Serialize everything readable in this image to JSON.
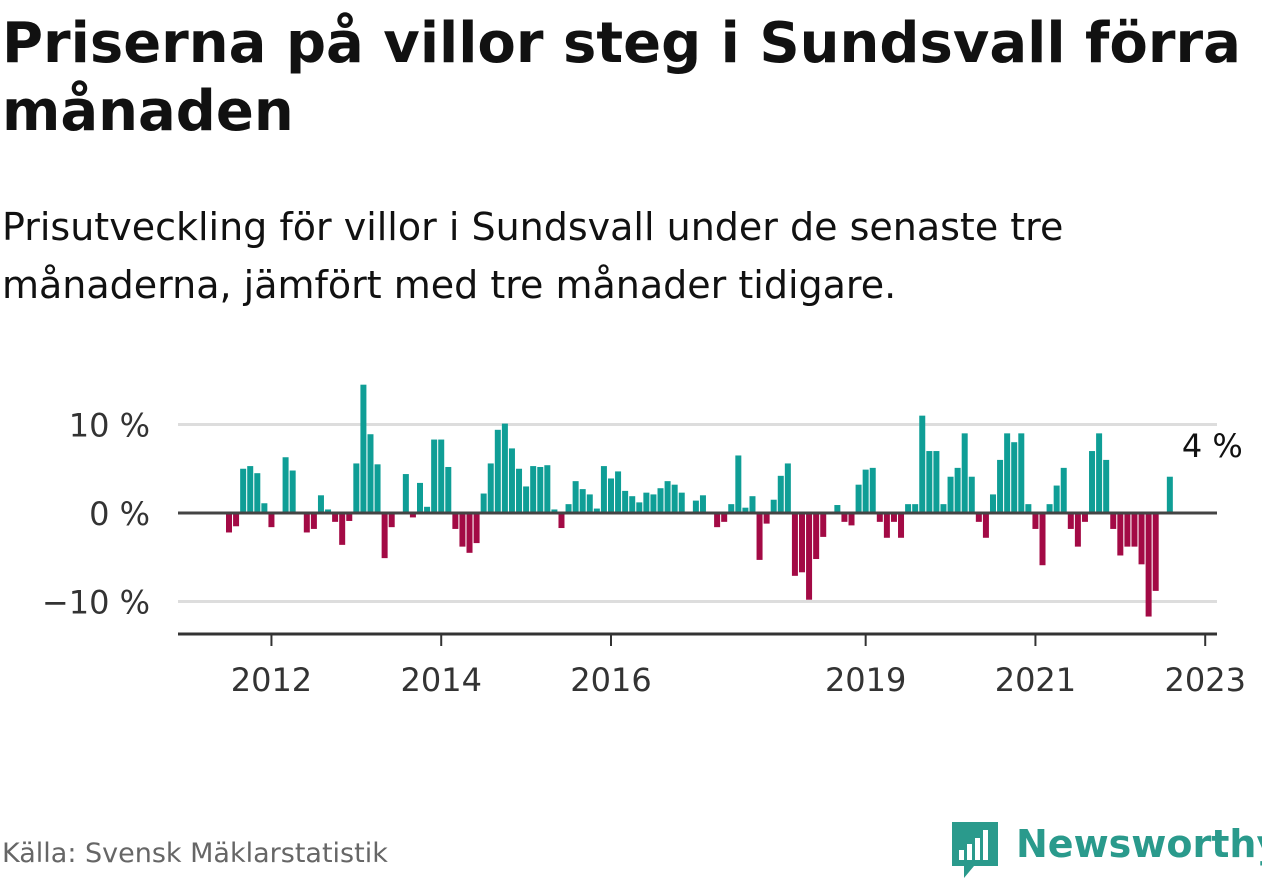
{
  "title": "Priserna på villor steg i Sundsvall förra månaden",
  "subtitle": "Prisutveckling för villor i Sundsvall under de senaste tre månaderna, jämfört med tre månader tidigare.",
  "source": "Källa: Svensk Mäklarstatistik",
  "brand": {
    "name": "Newsworthy",
    "icon": "bar-chart-speech-bubble-icon",
    "color": "#2a9a8c"
  },
  "colors": {
    "positive": "#0f9e96",
    "negative": "#a30a45",
    "zero_line": "#444444",
    "grid": "#dddddd"
  },
  "chart_data": {
    "type": "bar",
    "title": "",
    "xlabel": "",
    "ylabel": "",
    "ylim": [
      -13,
      15
    ],
    "y_ticks": [
      10,
      0,
      -10
    ],
    "y_tick_labels": [
      "10 %",
      "0 %",
      "−10 %"
    ],
    "x_start": "2011-07",
    "x_ticks": [
      {
        "label": "2012",
        "month": "2012-01"
      },
      {
        "label": "2014",
        "month": "2014-01"
      },
      {
        "label": "2016",
        "month": "2016-01"
      },
      {
        "label": "2019",
        "month": "2019-01"
      },
      {
        "label": "2021",
        "month": "2021-01"
      },
      {
        "label": "2023",
        "month": "2023-01"
      }
    ],
    "annotation": {
      "text": "4 %",
      "month": "2023-02"
    },
    "values": [
      -2.2,
      -1.5,
      5.0,
      5.3,
      4.5,
      1.1,
      -1.6,
      0,
      6.3,
      4.8,
      0,
      -2.2,
      -1.8,
      2.0,
      0.4,
      -1.0,
      -3.6,
      -0.9,
      5.6,
      14.5,
      8.9,
      5.5,
      -5.1,
      -1.6,
      0,
      4.4,
      -0.5,
      3.4,
      0.7,
      8.3,
      8.3,
      5.2,
      -1.8,
      -3.8,
      -4.5,
      -3.4,
      2.2,
      5.6,
      9.4,
      10.1,
      7.3,
      5.0,
      3.0,
      5.3,
      5.2,
      5.4,
      0.4,
      -1.7,
      1.0,
      3.6,
      2.7,
      2.1,
      0.5,
      5.3,
      3.9,
      4.7,
      2.5,
      1.9,
      1.2,
      2.3,
      2.1,
      2.8,
      3.6,
      3.2,
      2.3,
      0,
      1.4,
      2.0,
      0,
      -1.6,
      -1.0,
      1.0,
      6.5,
      0.6,
      1.9,
      -5.3,
      -1.2,
      1.5,
      4.2,
      5.6,
      -7.1,
      -6.7,
      -9.8,
      -5.2,
      -2.7,
      0,
      0.9,
      -1.0,
      -1.4,
      3.2,
      4.9,
      5.1,
      -1.0,
      -2.8,
      -1.0,
      -2.8,
      1.0,
      1.0,
      11.0,
      7.0,
      7.0,
      1.0,
      4.1,
      5.1,
      9.0,
      4.1,
      -1.0,
      -2.8,
      2.1,
      6.0,
      9.0,
      8.0,
      9.0,
      1.0,
      -1.8,
      -5.9,
      1.0,
      3.1,
      5.1,
      -1.8,
      -3.8,
      -1.0,
      7.0,
      9.0,
      6.0,
      -1.8,
      -4.8,
      -3.8,
      -3.8,
      -5.8,
      -11.7,
      -8.8,
      0,
      4.1
    ]
  }
}
